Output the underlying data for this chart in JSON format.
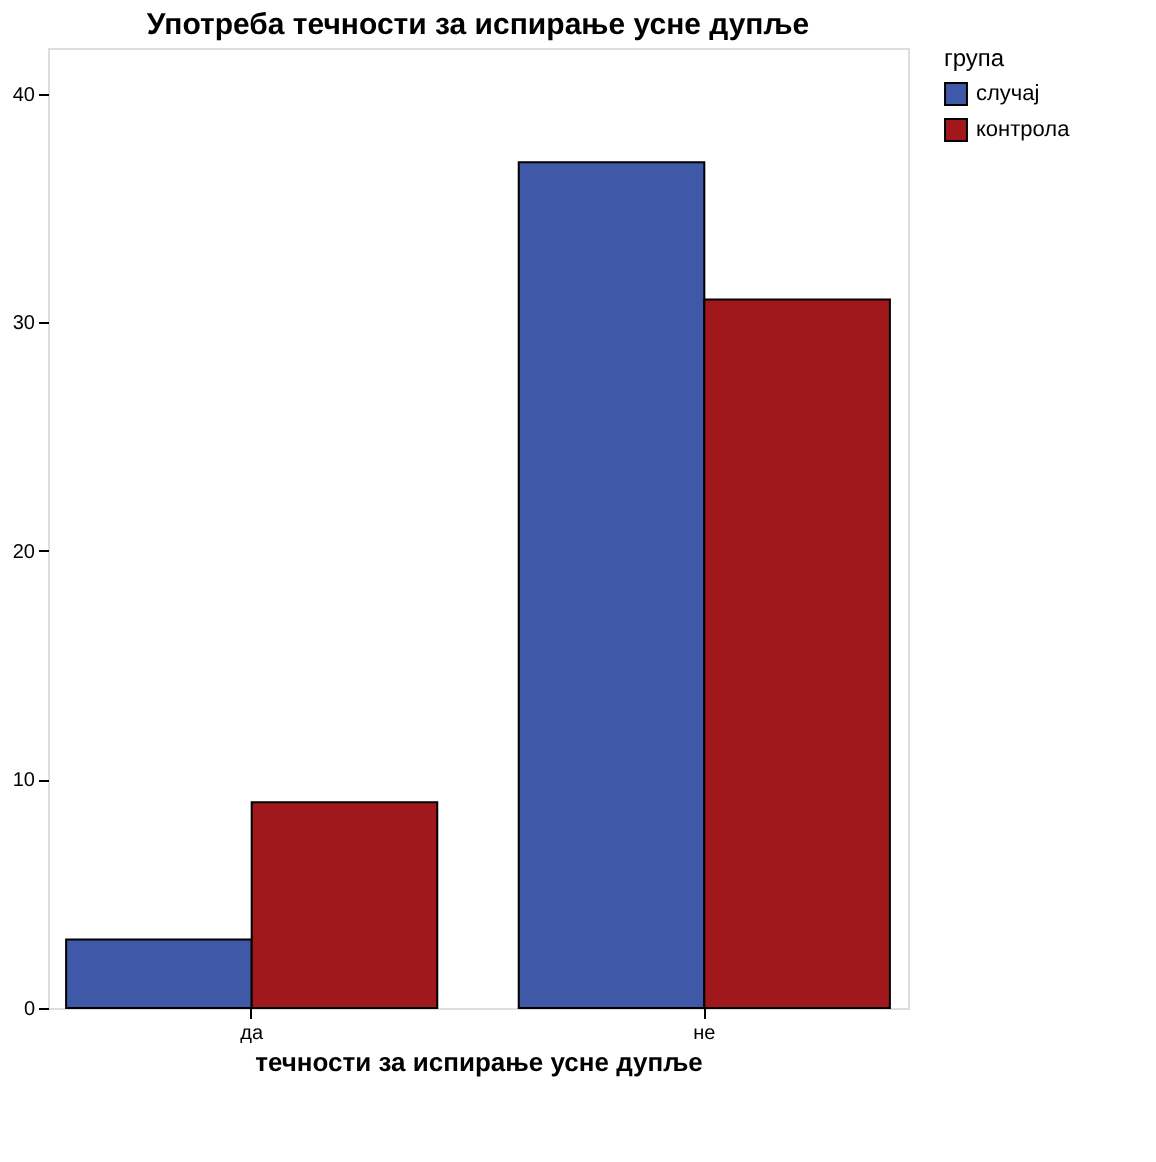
{
  "chart_data": {
    "type": "bar",
    "title": "Употреба течности за испирање усне дупље",
    "xlabel": "течности за испирање усне дупље",
    "legend_title": "група",
    "categories": [
      "да",
      "не"
    ],
    "series": [
      {
        "name": "случај",
        "color": "#3f58a8",
        "values": [
          3,
          37
        ]
      },
      {
        "name": "контрола",
        "color": "#a1181c",
        "values": [
          9,
          31
        ]
      }
    ],
    "ylim": [
      0,
      42
    ],
    "yticks": [
      0,
      10,
      20,
      30,
      40
    ],
    "grid": false,
    "legend": "top right"
  }
}
